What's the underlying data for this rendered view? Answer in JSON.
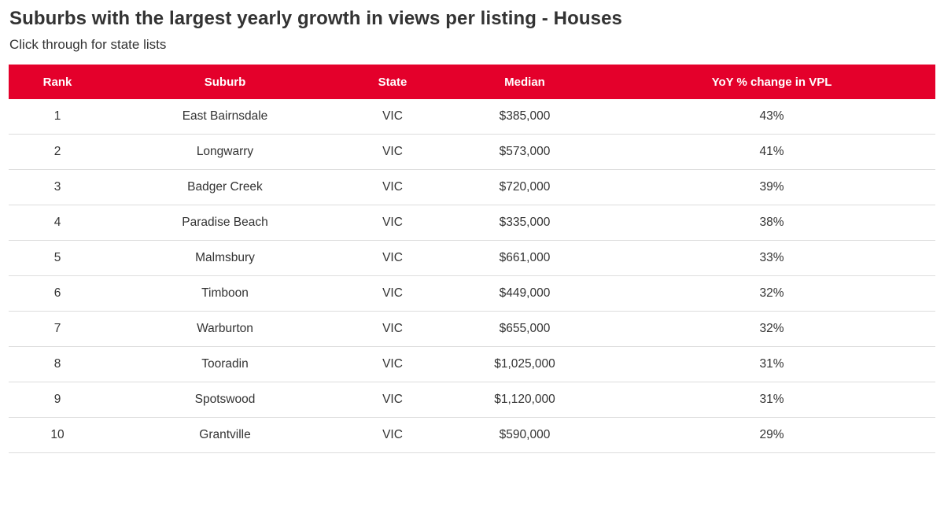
{
  "title": "Suburbs with the largest yearly growth in views per listing - Houses",
  "subtitle": "Click through for state lists",
  "colors": {
    "header_bg": "#e4002b",
    "header_text": "#ffffff",
    "body_text": "#333333",
    "row_divider": "#dddddd"
  },
  "chart_data": {
    "type": "table",
    "title": "Suburbs with the largest yearly growth in views per listing - Houses",
    "subtitle": "Click through for state lists",
    "columns": [
      "Rank",
      "Suburb",
      "State",
      "Median",
      "YoY % change in VPL"
    ],
    "rows": [
      [
        "1",
        "East Bairnsdale",
        "VIC",
        "$385,000",
        "43%"
      ],
      [
        "2",
        "Longwarry",
        "VIC",
        "$573,000",
        "41%"
      ],
      [
        "3",
        "Badger Creek",
        "VIC",
        "$720,000",
        "39%"
      ],
      [
        "4",
        "Paradise Beach",
        "VIC",
        "$335,000",
        "38%"
      ],
      [
        "5",
        "Malmsbury",
        "VIC",
        "$661,000",
        "33%"
      ],
      [
        "6",
        "Timboon",
        "VIC",
        "$449,000",
        "32%"
      ],
      [
        "7",
        "Warburton",
        "VIC",
        "$655,000",
        "32%"
      ],
      [
        "8",
        "Tooradin",
        "VIC",
        "$1,025,000",
        "31%"
      ],
      [
        "9",
        "Spotswood",
        "VIC",
        "$1,120,000",
        "31%"
      ],
      [
        "10",
        "Grantville",
        "VIC",
        "$590,000",
        "29%"
      ]
    ]
  }
}
